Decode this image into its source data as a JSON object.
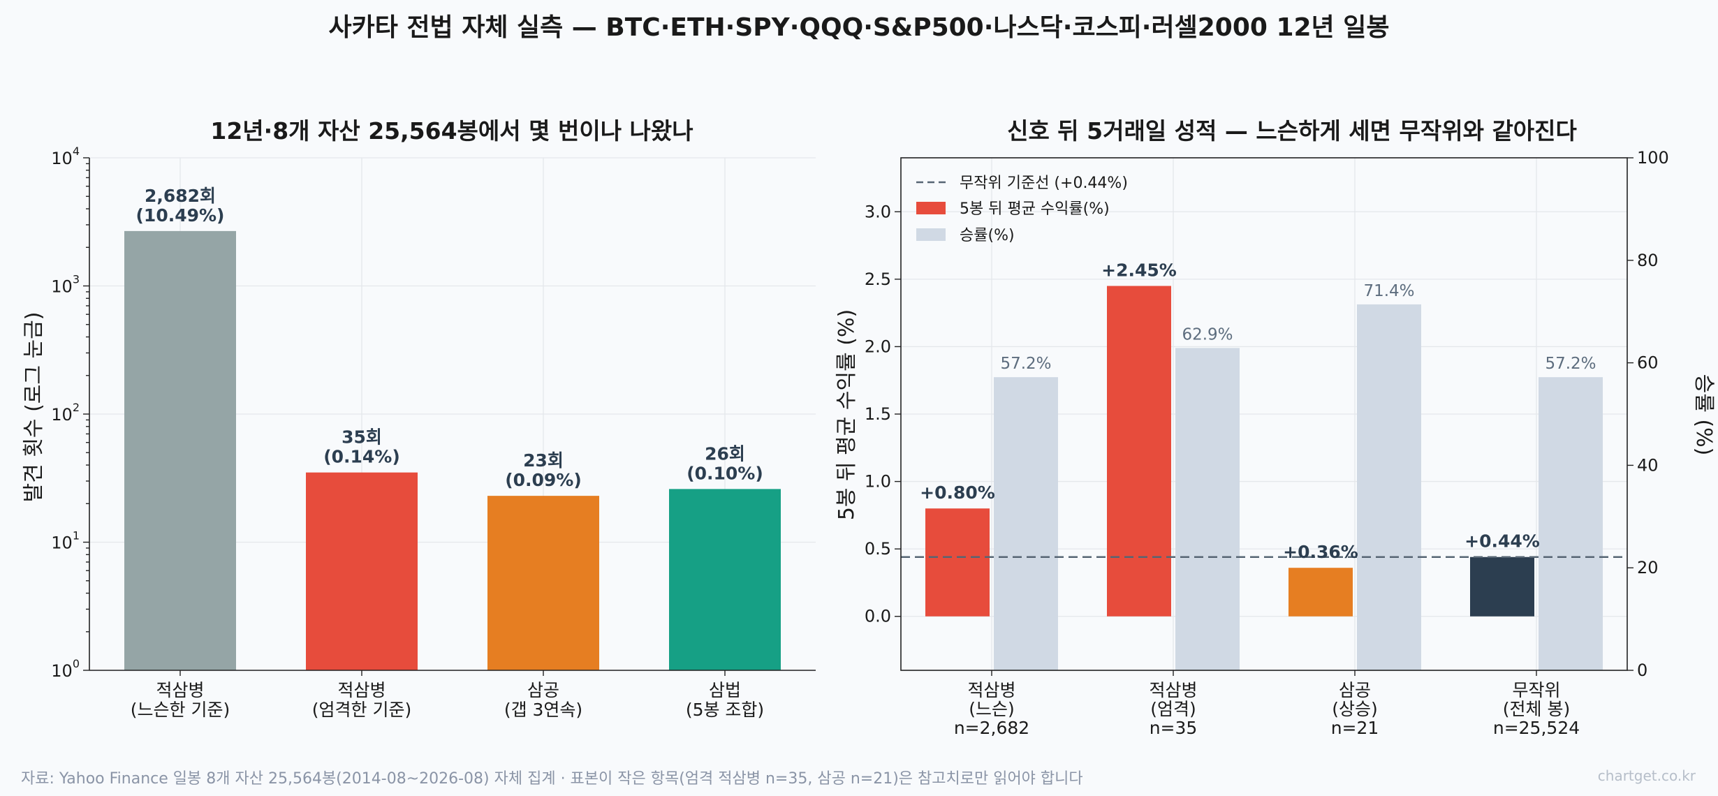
{
  "title": "사카타 전법 자체 실측 — BTC·ETH·SPY·QQQ·S&P500·나스닥·코스피·러셀2000 12년 일봉",
  "footer": "자료: Yahoo Finance 일봉 8개 자산 25,564봉(2014-08~2026-08) 자체 집계 · 표본이 작은 항목(엄격 적삼병 n=35, 삼공 n=21)은 참고치로만 읽어야 합니다",
  "credit": "chartget.co.kr",
  "chart_data": [
    {
      "type": "bar",
      "title": "12년·8개 자산 25,564봉에서 몇 번이나 나왔나",
      "ylabel": "발견 횟수 (로그 눈금)",
      "yscale": "log",
      "ylim": [
        1,
        10000
      ],
      "yticks": [
        {
          "base": "10",
          "exp": "0"
        },
        {
          "base": "10",
          "exp": "1"
        },
        {
          "base": "10",
          "exp": "2"
        },
        {
          "base": "10",
          "exp": "3"
        },
        {
          "base": "10",
          "exp": "4"
        }
      ],
      "grid": true,
      "categories": [
        {
          "line1": "적삼병",
          "line2": "(느슨한 기준)"
        },
        {
          "line1": "적삼병",
          "line2": "(엄격한 기준)"
        },
        {
          "line1": "삼공",
          "line2": "(갭 3연속)"
        },
        {
          "line1": "삼법",
          "line2": "(5봉 조합)"
        }
      ],
      "values": [
        2682,
        35,
        23,
        26
      ],
      "colors": [
        "#95a5a6",
        "#e74c3c",
        "#e67e22",
        "#16a085"
      ],
      "labels": [
        {
          "count": "2,682회",
          "pct": "(10.49%)"
        },
        {
          "count": "35회",
          "pct": "(0.14%)"
        },
        {
          "count": "23회",
          "pct": "(0.09%)"
        },
        {
          "count": "26회",
          "pct": "(0.10%)"
        }
      ]
    },
    {
      "type": "bar",
      "title": "신호 뒤 5거래일 성적 — 느슨하게 세면 무작위와 같아진다",
      "ylabel": "5봉 뒤 평균 수익률 (%)",
      "y2label": "승률 (%)",
      "ylim": [
        -0.4,
        3.4
      ],
      "y2lim": [
        0,
        100
      ],
      "yticks": [
        "0.0",
        "0.5",
        "1.0",
        "1.5",
        "2.0",
        "2.5",
        "3.0"
      ],
      "y2ticks": [
        "0",
        "20",
        "40",
        "60",
        "80",
        "100"
      ],
      "grid": true,
      "legend_position": "upper-left",
      "categories": [
        {
          "line1": "적삼병",
          "line2": "(느슨)",
          "n": "n=2,682"
        },
        {
          "line1": "적삼병",
          "line2": "(엄격)",
          "n": "n=35"
        },
        {
          "line1": "삼공",
          "line2": "(상승)",
          "n": "n=21"
        },
        {
          "line1": "무작위",
          "line2": "(전체 봉)",
          "n": "n=25,524"
        }
      ],
      "series": [
        {
          "name": "5봉 뒤 평균 수익률(%)",
          "axis": "left",
          "values": [
            0.8,
            2.45,
            0.36,
            0.44
          ],
          "labels": [
            "+0.80%",
            "+2.45%",
            "+0.36%",
            "+0.44%"
          ],
          "colors": [
            "#e74c3c",
            "#e74c3c",
            "#e67e22",
            "#2c3e50"
          ],
          "legend_color": "#e74c3c"
        },
        {
          "name": "승률(%)",
          "axis": "right",
          "values": [
            57.2,
            62.9,
            71.4,
            57.2
          ],
          "labels": [
            "57.2%",
            "62.9%",
            "71.4%",
            "57.2%"
          ],
          "color": "#d0d9e4"
        }
      ],
      "reference_line": {
        "name": "무작위 기준선 (+0.44%)",
        "value": 0.44,
        "color": "#566573",
        "style": "dashed"
      }
    }
  ]
}
